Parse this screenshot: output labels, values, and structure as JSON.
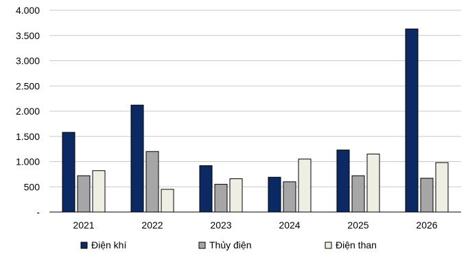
{
  "chart_data": {
    "type": "bar",
    "categories": [
      "2021",
      "2022",
      "2023",
      "2024",
      "2025",
      "2026"
    ],
    "series": [
      {
        "name": "Điện khí",
        "values": [
          1580,
          2120,
          920,
          690,
          1230,
          3630
        ],
        "color": "#0b2a63"
      },
      {
        "name": "Thủy điện",
        "values": [
          720,
          1200,
          550,
          600,
          720,
          670
        ],
        "color": "#a6a6a6"
      },
      {
        "name": "Điện than",
        "values": [
          820,
          450,
          660,
          1050,
          1150,
          980
        ],
        "color": "#efeee3"
      }
    ],
    "y_ticks": [
      "-",
      "500",
      "1.000",
      "1.500",
      "2.000",
      "2.500",
      "3.000",
      "3.500",
      "4.000"
    ],
    "ylim": [
      0,
      4000
    ],
    "grid": true,
    "legend_position": "bottom",
    "title": "",
    "xlabel": "",
    "ylabel": ""
  }
}
